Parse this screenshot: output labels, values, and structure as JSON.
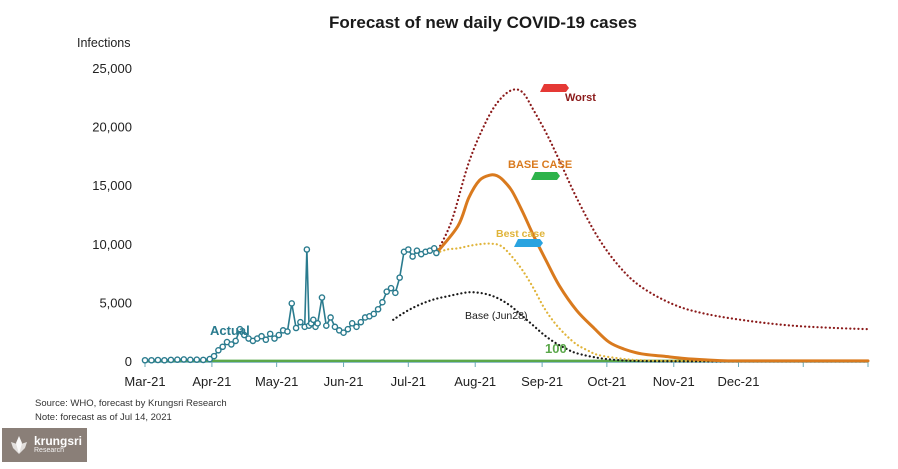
{
  "chart_data": {
    "type": "line",
    "title": "Forecast of new daily COVID-19 cases",
    "ylabel": "Infections",
    "xlabel": "",
    "ylim": [
      0,
      25000
    ],
    "yticks": [
      0,
      5000,
      10000,
      15000,
      20000,
      25000
    ],
    "ytick_labels": [
      "0",
      "5,000",
      "10,000",
      "15,000",
      "20,000",
      "25,000"
    ],
    "xtick_labels": [
      "Mar-21",
      "Apr-21",
      "May-21",
      "Jun-21",
      "Jul-21",
      "Aug-21",
      "Sep-21",
      "Oct-21",
      "Nov-21",
      "Dec-21"
    ],
    "x_unit": "days since 1 Mar 2021",
    "xlim": [
      0,
      335
    ],
    "xtick_days": [
      0,
      31,
      61,
      92,
      122,
      153,
      184,
      214,
      245,
      275
    ],
    "series": [
      {
        "name": "Actual",
        "label": "Actual",
        "style": "line-markers",
        "color": "#2a7b8e",
        "x": [
          0,
          3,
          6,
          9,
          12,
          15,
          18,
          21,
          24,
          27,
          30,
          32,
          34,
          36,
          38,
          40,
          42,
          44,
          46,
          48,
          50,
          52,
          54,
          56,
          58,
          60,
          62,
          64,
          66,
          68,
          70,
          72,
          74,
          75,
          76,
          77,
          78,
          79,
          80,
          82,
          84,
          86,
          88,
          90,
          92,
          94,
          96,
          98,
          100,
          102,
          104,
          106,
          108,
          110,
          112,
          114,
          116,
          118,
          120,
          122,
          124,
          126,
          128,
          130,
          132,
          134,
          135
        ],
        "y": [
          150,
          150,
          170,
          150,
          180,
          200,
          220,
          190,
          200,
          180,
          250,
          500,
          1000,
          1300,
          1700,
          1500,
          1800,
          2800,
          2300,
          2000,
          1800,
          2000,
          2200,
          1900,
          2400,
          2000,
          2300,
          2700,
          2600,
          5000,
          2900,
          3400,
          3000,
          9600,
          3100,
          3300,
          3600,
          3000,
          3300,
          5500,
          3100,
          3800,
          3000,
          2700,
          2500,
          2800,
          3300,
          3000,
          3400,
          3800,
          3900,
          4100,
          4500,
          5100,
          6000,
          6300,
          5900,
          7200,
          9400,
          9600,
          9000,
          9500,
          9200,
          9400,
          9500,
          9700,
          9300
        ]
      },
      {
        "name": "Worst",
        "label": "Worst",
        "style": "dotted",
        "color": "#8b1a1a",
        "badge_color": "#e53935",
        "x": [
          135,
          142,
          150,
          158,
          164,
          170,
          175,
          180,
          186,
          192,
          200,
          210,
          220,
          230,
          245,
          260,
          280,
          300,
          320,
          335
        ],
        "y": [
          9300,
          12000,
          17000,
          20500,
          22300,
          23200,
          23000,
          21500,
          19500,
          17200,
          14000,
          10600,
          8100,
          6400,
          4900,
          4100,
          3500,
          3100,
          2900,
          2800
        ]
      },
      {
        "name": "BASE CASE",
        "label": "BASE CASE",
        "style": "solid",
        "color": "#d97a1e",
        "badge_color": "#2db34a",
        "x": [
          135,
          145,
          150,
          155,
          160,
          163,
          166,
          170,
          175,
          180,
          186,
          192,
          200,
          208,
          215,
          222,
          230,
          240,
          250,
          260,
          270,
          285,
          300,
          320,
          335
        ],
        "y": [
          9300,
          11600,
          14000,
          15500,
          15950,
          15900,
          15500,
          14600,
          12800,
          10800,
          8600,
          6500,
          4400,
          2900,
          1700,
          1100,
          700,
          500,
          300,
          180,
          100,
          100,
          100,
          100,
          100
        ]
      },
      {
        "name": "Best case",
        "label": "Best case",
        "style": "dotted",
        "color": "#e0b43a",
        "badge_color": "#29a3e0",
        "x": [
          135,
          140,
          145,
          150,
          155,
          160,
          165,
          170,
          175,
          180,
          185,
          190,
          195,
          200,
          205,
          210,
          220,
          230,
          250,
          280,
          300,
          335
        ],
        "y": [
          9300,
          9600,
          9700,
          9900,
          10050,
          10100,
          9900,
          9000,
          7800,
          6300,
          4600,
          3300,
          2300,
          1500,
          1000,
          600,
          300,
          150,
          100,
          100,
          100,
          100
        ]
      },
      {
        "name": "Base (Jun28)",
        "label": "Base (Jun28)",
        "style": "dotted",
        "color": "#1a1a1a",
        "x": [
          115,
          120,
          125,
          130,
          135,
          140,
          145,
          150,
          155,
          160,
          165,
          170,
          175,
          180,
          185,
          190,
          195,
          200,
          210,
          220,
          230,
          245,
          260,
          280,
          300,
          335
        ],
        "y": [
          3600,
          4200,
          4700,
          5100,
          5400,
          5600,
          5800,
          5950,
          5900,
          5700,
          5300,
          4700,
          3900,
          3100,
          2300,
          1650,
          1150,
          750,
          350,
          150,
          80,
          60,
          50,
          50,
          50,
          50
        ]
      },
      {
        "name": "100",
        "label": "100",
        "style": "solid-thin",
        "color": "#5aa74a",
        "x": [
          0,
          335
        ],
        "y": [
          100,
          100
        ]
      }
    ]
  },
  "footer": {
    "source": "Source: WHO, forecast by Krungsri Research",
    "note": "Note: forecast as of Jul 14, 2021"
  },
  "logo": {
    "brand": "krungsri",
    "sub": "Research"
  }
}
